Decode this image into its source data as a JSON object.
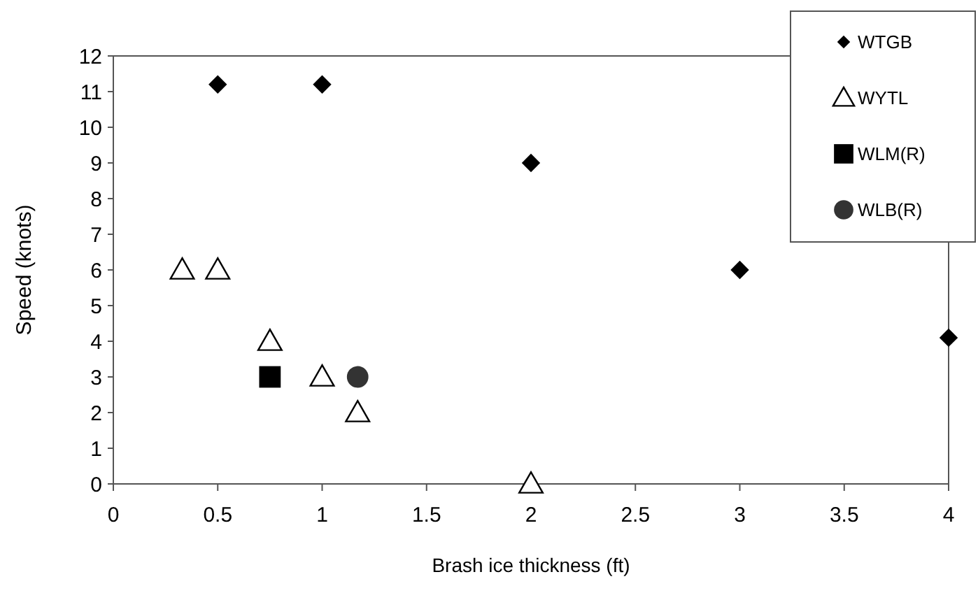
{
  "chart_data": {
    "type": "scatter",
    "xlabel": "Brash ice thickness (ft)",
    "ylabel": "Speed (knots)",
    "xlim": [
      0,
      4
    ],
    "xticks": [
      0,
      0.5,
      1,
      1.5,
      2,
      2.5,
      3,
      3.5,
      4
    ],
    "ylim": [
      0,
      12
    ],
    "yticks": [
      0,
      1,
      2,
      3,
      4,
      5,
      6,
      7,
      8,
      9,
      10,
      11,
      12
    ],
    "grid": false,
    "legend": "top right",
    "series": [
      {
        "name": "WTGB",
        "color": "#000000",
        "marker": "diamond",
        "x": [
          0.5,
          1,
          2,
          3,
          4
        ],
        "values": [
          11.2,
          11.2,
          9,
          6,
          4.1
        ]
      },
      {
        "name": "WYTL",
        "color": "#000000",
        "marker": "triangle",
        "x": [
          0.33,
          0.5,
          0.75,
          1,
          1.17,
          2
        ],
        "values": [
          6,
          6,
          4,
          3,
          2,
          0
        ]
      },
      {
        "name": "WLM(R)",
        "color": "#000000",
        "marker": "square",
        "x": [
          0.75
        ],
        "values": [
          3
        ]
      },
      {
        "name": "WLB(R)",
        "color": "#333333",
        "marker": "circle",
        "x": [
          1.17
        ],
        "values": [
          3
        ]
      }
    ]
  }
}
